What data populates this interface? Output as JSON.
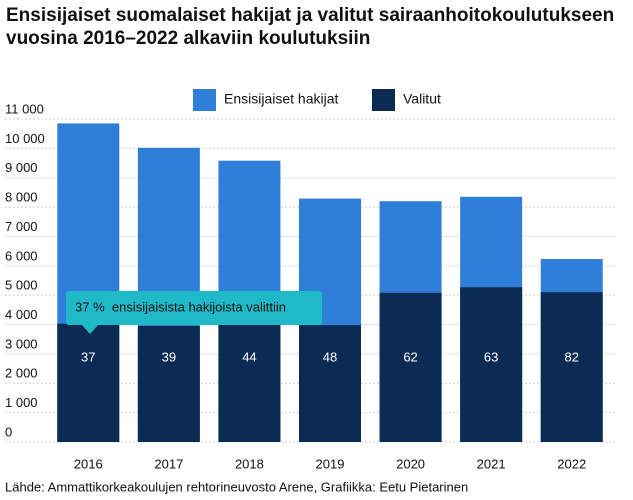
{
  "chart_data": {
    "type": "bar",
    "title": "Ensisijaiset suomalaiset hakijat ja valitut sairaanhoitokoulutukseen vuosina 2016–2022 alkaviin koulutuksiin",
    "categories": [
      "2016",
      "2017",
      "2018",
      "2019",
      "2020",
      "2021",
      "2022"
    ],
    "series": [
      {
        "name": "Ensisijaiset hakijat",
        "color": "#2f7ed8",
        "values": [
          10850,
          10020,
          9580,
          8290,
          8200,
          8350,
          6230
        ]
      },
      {
        "name": "Valitut",
        "color": "#0b2b55",
        "values": [
          4030,
          3950,
          4220,
          3980,
          5080,
          5270,
          5100
        ]
      }
    ],
    "percent_labels": [
      37,
      39,
      44,
      48,
      62,
      63,
      82
    ],
    "annotation": "37 %  ensisijaisista hakijoista valittiin",
    "source": "Lähde: Ammattikorkeakoulujen rehtorineuvosto Arene, Grafiikka: Eetu Pietarinen",
    "ylim": [
      0,
      11000
    ],
    "yticks": [
      0,
      {
        "value": 1000,
        "label": "1 000"
      },
      {
        "value": 2000,
        "label": "2 000"
      },
      {
        "value": 3000,
        "label": "3 000"
      },
      {
        "value": 4000,
        "label": "4 000"
      },
      {
        "value": 5000,
        "label": "5 000"
      },
      {
        "value": 6000,
        "label": "6 000"
      },
      {
        "value": 7000,
        "label": "7 000"
      },
      {
        "value": 8000,
        "label": "8 000"
      },
      {
        "value": 9000,
        "label": "9 000"
      },
      {
        "value": 10000,
        "label": "10 000"
      },
      {
        "value": 11000,
        "label": "11 000"
      }
    ],
    "grid": true,
    "overlap": true
  }
}
